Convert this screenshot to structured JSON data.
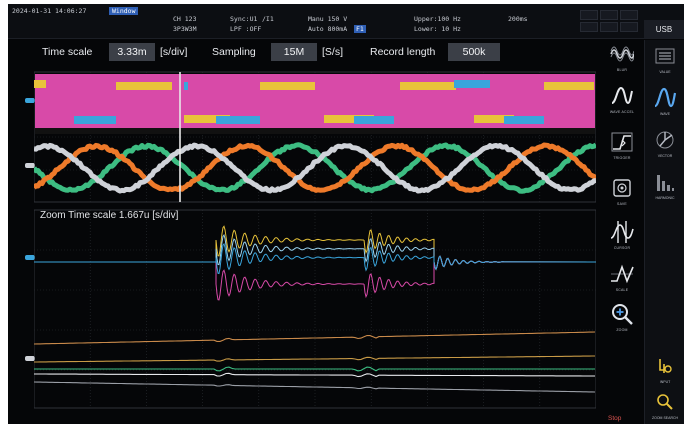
{
  "status": {
    "datetime": "2024-01-31 14:06:27",
    "mode": "Window",
    "ch_label": "CH 123",
    "sync_label": "Sync:U1",
    "sync_extra": "/I1",
    "range_label": "Manu 150 V",
    "upper_label": "Upper:100 Hz",
    "time_label": "200ms",
    "wiring_label": "3P3W3M",
    "lpf_label": "LPF :OFF",
    "auto_label": "Auto 800mA",
    "fx_chip": "F1",
    "lower_label": "Lower: 10 Hz",
    "usb_tab": "USB"
  },
  "settings": {
    "time_scale_label": "Time scale",
    "time_scale_value": "3.33m",
    "time_scale_unit": "[s/div]",
    "sampling_label": "Sampling",
    "sampling_value": "15M",
    "sampling_unit": "[S/s]",
    "record_length_label": "Record length",
    "record_length_value": "500k"
  },
  "zoom": {
    "label": "Zoom Time scale 1.667u [s/div]"
  },
  "colors": {
    "magenta": "#d84aa8",
    "yellow": "#e8c33a",
    "blue": "#3aa5dc",
    "white": "#cfd2d8",
    "orange": "#ee7a2a",
    "green": "#3dbd82",
    "accent": "#2f5fb5"
  },
  "side_menu": [
    {
      "icon": "waveform-blur-icon",
      "label": "Blur"
    },
    {
      "icon": "waveform-line-icon",
      "label": "Wave Accel"
    },
    {
      "icon": "trigger-icon",
      "label": "Trigger"
    },
    {
      "icon": "save-icon",
      "label": "Save"
    },
    {
      "icon": "cursor-icon",
      "label": "Cursor"
    },
    {
      "icon": "scale-icon",
      "label": "Scale"
    },
    {
      "icon": "zoom-icon",
      "label": "Zoom"
    }
  ],
  "right_menu": [
    {
      "icon": "value-icon",
      "label": "Value"
    },
    {
      "icon": "wave-icon",
      "label": "Wave"
    },
    {
      "icon": "vector-icon",
      "label": "Vector"
    },
    {
      "icon": "harmonic-icon",
      "label": "Harmonic"
    },
    {
      "icon": "input-icon",
      "label": "Input"
    },
    {
      "icon": "search-icon",
      "label": "Zoom search"
    }
  ],
  "stop_label": "Stop"
}
